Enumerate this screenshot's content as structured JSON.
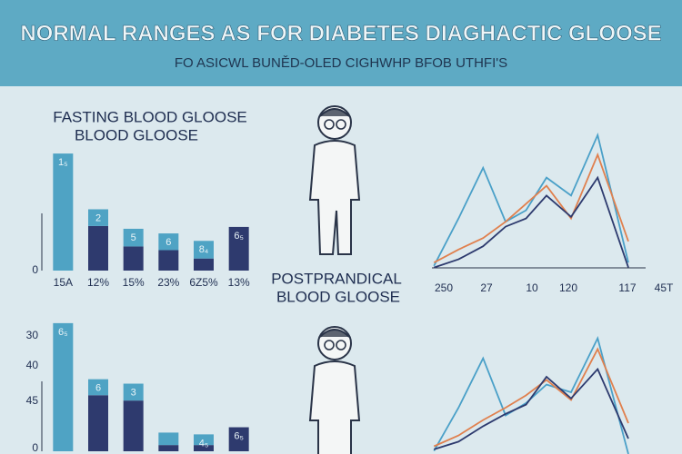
{
  "header": {
    "title": "NORMAL RANGES AS FOR DIABETES DIAGHACTIC GLOOSE",
    "subtitle": "FO ASICWL BUNĚD-OLED CIGHWHP BFOB UTHFI'S"
  },
  "sections": [
    {
      "heading": [
        "FASTING BLOOD GLOOSE",
        "BLOOD GLOOSE"
      ]
    },
    {
      "heading": [
        "POSTPRANDICAL",
        "BLOOD GLOOSE"
      ]
    }
  ],
  "chart_data": [
    {
      "type": "bar",
      "categories": [
        "15A",
        "12%",
        "15%",
        "23%",
        "6Z5%",
        "13%"
      ],
      "series": [
        {
          "color": "#2e3a6e",
          "values": [
            0,
            48,
            26,
            22,
            13,
            47
          ]
        },
        {
          "color": "#4fa3c4",
          "values": [
            126,
            18,
            19,
            18,
            19,
            0
          ]
        }
      ],
      "bar_labels": [
        "1₅",
        "2",
        "5",
        "6",
        "8₄",
        "6₅"
      ],
      "ylim": [
        0,
        130
      ],
      "yticks": [
        0
      ]
    },
    {
      "type": "line",
      "x": [
        1,
        13,
        25,
        36,
        46,
        56,
        68,
        81,
        96
      ],
      "xlim": [
        0,
        100
      ],
      "ylim": [
        0,
        100
      ],
      "x_labels": [
        "250",
        "27",
        "10",
        "120",
        "117",
        "45T"
      ],
      "series": [
        {
          "color": "#4aa0c8",
          "values": [
            4,
            33,
            64,
            31,
            38,
            58,
            47,
            84,
            6
          ]
        },
        {
          "color": "#e0804e",
          "values": [
            6,
            14,
            21,
            31,
            42,
            53,
            33,
            72,
            19
          ]
        },
        {
          "color": "#2d3a6e",
          "values": [
            3,
            8,
            16,
            28,
            33,
            47,
            34,
            58,
            3
          ]
        }
      ]
    },
    {
      "type": "bar",
      "y_labels": [
        "30",
        "40",
        "45",
        "0"
      ],
      "series": [
        {
          "color": "#2e3a6e",
          "values": [
            0,
            63,
            57,
            7,
            7,
            27
          ]
        },
        {
          "color": "#4fa3c4",
          "values": [
            144,
            18,
            19,
            14,
            12,
            0
          ]
        }
      ],
      "bar_labels": [
        "6₅",
        "6",
        "3",
        null,
        "4₅",
        "6₅"
      ],
      "ylim": [
        0,
        150
      ]
    },
    {
      "type": "line",
      "x": [
        1,
        13,
        25,
        36,
        46,
        56,
        68,
        81,
        96
      ],
      "xlim": [
        0,
        100
      ],
      "ylim": [
        0,
        100
      ],
      "series": [
        {
          "color": "#4aa0c8",
          "values": [
            2,
            30,
            62,
            25,
            33,
            45,
            40,
            75,
            0
          ]
        },
        {
          "color": "#e0804e",
          "values": [
            5,
            12,
            22,
            30,
            38,
            48,
            35,
            68,
            20
          ]
        },
        {
          "color": "#2d3a6e",
          "values": [
            3,
            8,
            18,
            26,
            32,
            50,
            36,
            55,
            10
          ]
        }
      ]
    }
  ]
}
